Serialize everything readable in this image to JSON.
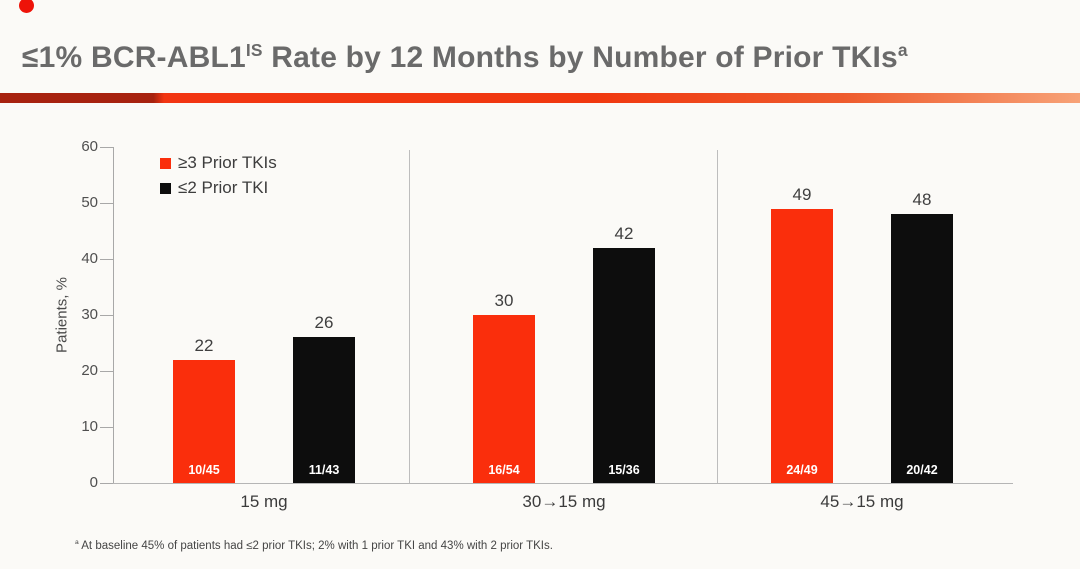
{
  "title": {
    "part1": "≤1% BCR-ABL1",
    "sup1": "IS",
    "part2": " Rate by 12 Months by Number of Prior TKIs",
    "sup2": "a"
  },
  "footnote": {
    "sup": "a",
    "text": " At baseline 45% of patients had ≤2 prior TKIs; 2% with 1 prior TKI and 43% with 2 prior TKIs."
  },
  "colors": {
    "series1_red": "#fa2e0c",
    "series2_black": "#0d0d0d",
    "divider_dark_red": "#a7220f",
    "divider_bright_red": "#f23512",
    "divider_light_orange": "#f7a277",
    "title_gray": "#6a6a6a",
    "bullet_red": "#ee1309"
  },
  "chart_data": {
    "type": "bar",
    "title": "≤1% BCR-ABL1 IS Rate by 12 Months by Number of Prior TKIs",
    "categories": [
      "15 mg",
      "30→15 mg",
      "45→15 mg"
    ],
    "series": [
      {
        "name": "≥3 Prior TKIs",
        "color": "#fa2e0c",
        "values": [
          22,
          30,
          49
        ],
        "bar_labels": [
          "10/45",
          "16/54",
          "24/49"
        ]
      },
      {
        "name": "≤2 Prior TKI",
        "color": "#0d0d0d",
        "values": [
          26,
          42,
          48
        ],
        "bar_labels": [
          "11/43",
          "15/36",
          "20/42"
        ]
      }
    ],
    "xlabel": "",
    "ylabel": "Patients, %",
    "ylim": [
      0,
      60
    ],
    "yticks": [
      0,
      10,
      20,
      30,
      40,
      50,
      60
    ],
    "grid": false,
    "legend_position": "top-left"
  }
}
